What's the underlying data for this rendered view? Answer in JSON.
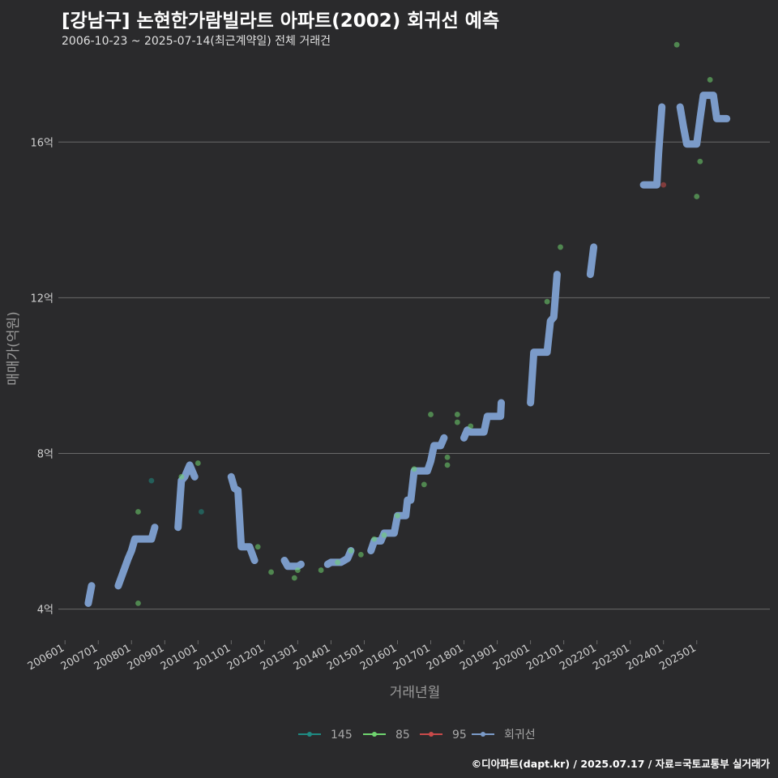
{
  "title": "[강남구] 논현한가람빌라트 아파트(2002) 회귀선 예측",
  "subtitle": "2006-10-23 ~ 2025-07-14(최근계약일) 전체 거래건",
  "credit": "©디아파트(dapt.kr) / 2025.07.17 / 자료=국토교통부 실거래가",
  "colors": {
    "background": "#2a2a2c",
    "grid": "#6a6a6a",
    "regression": "#7b9bc9",
    "s145": "#1f8a82",
    "s85": "#6fd46f",
    "s95": "#c94a4a"
  },
  "chart_data": {
    "type": "scatter",
    "xlabel": "거래년월",
    "ylabel": "매매가(억원)",
    "x_unit": "year (decimal)",
    "y_unit": "억원",
    "xlim": [
      2005.8,
      2027.2
    ],
    "ylim": [
      3.2,
      18.4
    ],
    "yticks": [
      4,
      8,
      12,
      16
    ],
    "ytick_labels": [
      "4억",
      "8억",
      "12억",
      "16억"
    ],
    "xtick_labels": [
      "200601",
      "200701",
      "200801",
      "200901",
      "201001",
      "201101",
      "201201",
      "201301",
      "201401",
      "201501",
      "201601",
      "201701",
      "201801",
      "201901",
      "202001",
      "202101",
      "202201",
      "202301",
      "202401",
      "202501"
    ],
    "legend": [
      "145",
      "85",
      "95",
      "회귀선"
    ],
    "series": [
      {
        "name": "145",
        "points": [
          [
            2008.6,
            7.3
          ],
          [
            2010.1,
            6.5
          ]
        ]
      },
      {
        "name": "85",
        "points": [
          [
            2008.2,
            6.5
          ],
          [
            2008.2,
            4.15
          ],
          [
            2009.5,
            7.4
          ],
          [
            2010.0,
            7.75
          ],
          [
            2011.8,
            5.6
          ],
          [
            2012.2,
            4.95
          ],
          [
            2012.9,
            4.8
          ],
          [
            2013.0,
            5.0
          ],
          [
            2013.7,
            5.0
          ],
          [
            2014.2,
            5.2
          ],
          [
            2014.6,
            5.5
          ],
          [
            2014.9,
            5.4
          ],
          [
            2015.3,
            5.8
          ],
          [
            2015.6,
            5.9
          ],
          [
            2016.0,
            6.4
          ],
          [
            2016.5,
            7.6
          ],
          [
            2016.8,
            7.2
          ],
          [
            2017.0,
            9.0
          ],
          [
            2017.5,
            7.7
          ],
          [
            2017.5,
            7.9
          ],
          [
            2017.8,
            8.8
          ],
          [
            2017.8,
            9.0
          ],
          [
            2018.2,
            8.7
          ],
          [
            2020.5,
            11.9
          ],
          [
            2020.9,
            13.3
          ],
          [
            2024.4,
            18.5
          ],
          [
            2025.0,
            14.6
          ],
          [
            2025.1,
            15.5
          ],
          [
            2025.4,
            17.6
          ]
        ]
      },
      {
        "name": "95",
        "points": [
          [
            2024.0,
            14.9
          ]
        ]
      },
      {
        "name": "회귀선",
        "points": [
          [
            2006.0,
            4.15
          ],
          [
            2006.7,
            4.15
          ],
          [
            2006.8,
            4.6
          ],
          [
            2007.6,
            4.6
          ],
          [
            2007.9,
            5.3
          ],
          [
            2008.0,
            5.5
          ],
          [
            2008.1,
            5.8
          ],
          [
            2008.6,
            5.8
          ],
          [
            2008.7,
            6.1
          ],
          [
            2009.4,
            6.1
          ],
          [
            2009.5,
            7.3
          ],
          [
            2009.6,
            7.4
          ],
          [
            2009.75,
            7.7
          ],
          [
            2009.9,
            7.4
          ],
          [
            2011.0,
            7.4
          ],
          [
            2011.1,
            7.1
          ],
          [
            2011.2,
            7.05
          ],
          [
            2011.3,
            5.6
          ],
          [
            2011.55,
            5.6
          ],
          [
            2011.7,
            5.25
          ],
          [
            2012.6,
            5.25
          ],
          [
            2012.7,
            5.1
          ],
          [
            2013.0,
            5.1
          ],
          [
            2013.1,
            5.15
          ],
          [
            2013.9,
            5.15
          ],
          [
            2014.0,
            5.2
          ],
          [
            2014.3,
            5.2
          ],
          [
            2014.5,
            5.3
          ],
          [
            2014.6,
            5.5
          ],
          [
            2015.2,
            5.5
          ],
          [
            2015.3,
            5.75
          ],
          [
            2015.5,
            5.75
          ],
          [
            2015.6,
            5.95
          ],
          [
            2015.9,
            5.95
          ],
          [
            2016.0,
            6.4
          ],
          [
            2016.25,
            6.4
          ],
          [
            2016.3,
            6.8
          ],
          [
            2016.4,
            6.8
          ],
          [
            2016.5,
            7.55
          ],
          [
            2016.9,
            7.55
          ],
          [
            2017.0,
            7.8
          ],
          [
            2017.1,
            8.2
          ],
          [
            2017.3,
            8.2
          ],
          [
            2017.4,
            8.4
          ],
          [
            2018.0,
            8.4
          ],
          [
            2018.1,
            8.6
          ],
          [
            2018.2,
            8.55
          ],
          [
            2018.6,
            8.55
          ],
          [
            2018.7,
            8.95
          ],
          [
            2019.1,
            8.95
          ],
          [
            2019.12,
            9.3
          ],
          [
            2020.0,
            9.3
          ],
          [
            2020.1,
            10.6
          ],
          [
            2020.5,
            10.6
          ],
          [
            2020.6,
            11.4
          ],
          [
            2020.7,
            11.5
          ],
          [
            2020.8,
            12.6
          ],
          [
            2021.8,
            12.6
          ],
          [
            2021.9,
            13.3
          ],
          [
            2022.5,
            13.3
          ],
          [
            2023.4,
            14.9
          ],
          [
            2023.8,
            14.9
          ],
          [
            2023.85,
            15.7
          ],
          [
            2023.95,
            16.9
          ],
          [
            2024.5,
            16.9
          ],
          [
            2024.6,
            16.4
          ],
          [
            2024.7,
            15.95
          ],
          [
            2025.0,
            15.95
          ],
          [
            2025.1,
            16.6
          ],
          [
            2025.2,
            17.2
          ],
          [
            2025.5,
            17.2
          ],
          [
            2025.6,
            16.6
          ],
          [
            2025.9,
            16.6
          ]
        ]
      }
    ]
  }
}
